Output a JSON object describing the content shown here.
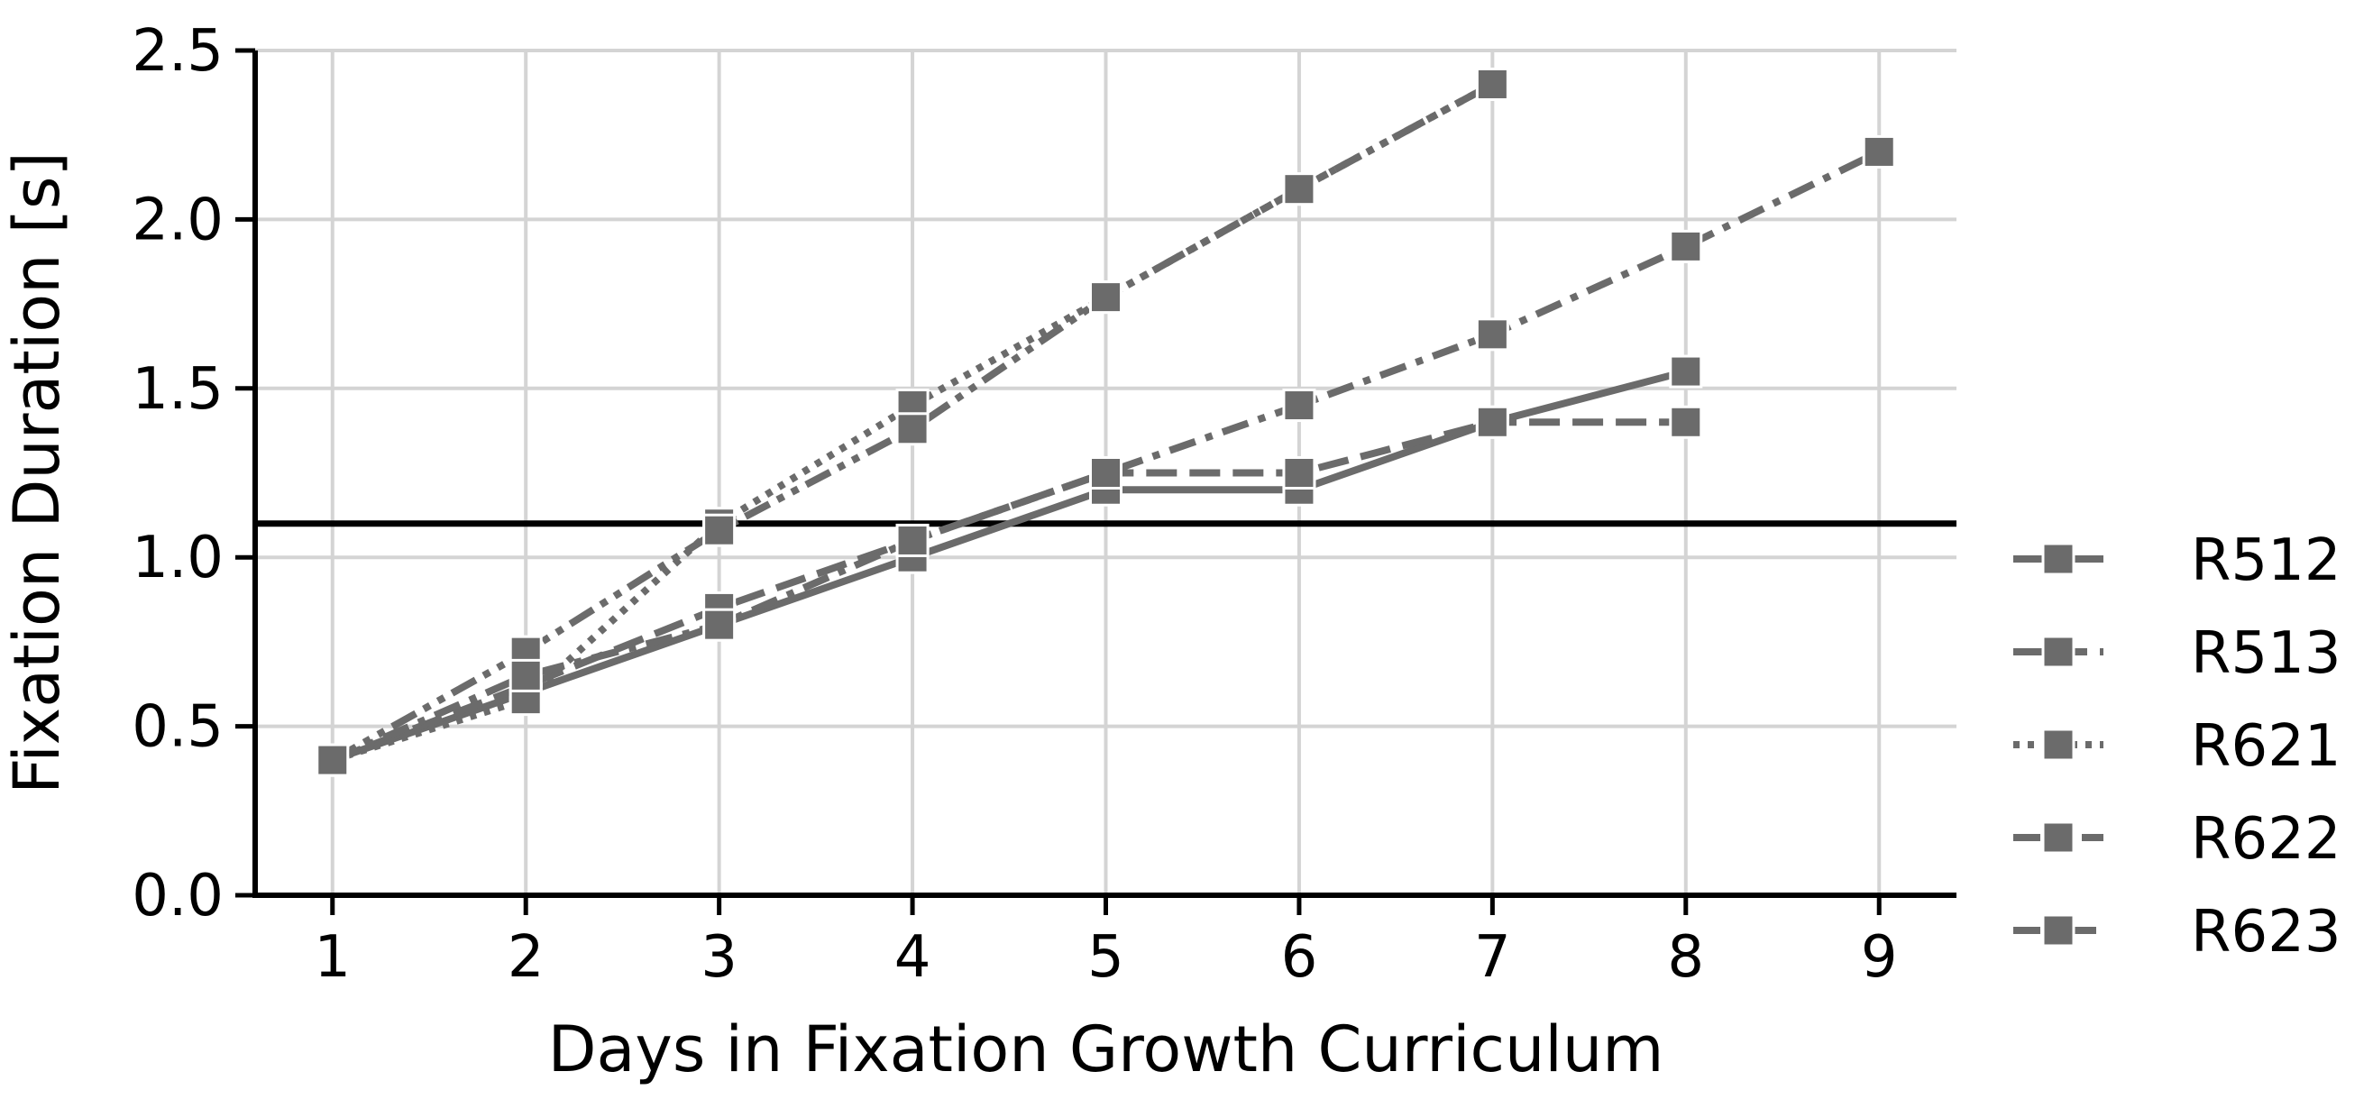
{
  "chart_data": {
    "type": "line",
    "title": "",
    "xlabel": "Days in Fixation Growth Curriculum",
    "ylabel": "Fixation Duration [s]",
    "xlim": [
      0.6,
      9.4
    ],
    "ylim": [
      0.0,
      2.5
    ],
    "x_ticks": [
      1,
      2,
      3,
      4,
      5,
      6,
      7,
      8,
      9
    ],
    "y_ticks": [
      "0.0",
      "0.5",
      "1.0",
      "1.5",
      "2.0",
      "2.5"
    ],
    "grid": true,
    "reference_line": {
      "y": 1.1,
      "color": "#000000"
    },
    "legend_position": "right",
    "series": [
      {
        "name": "R512",
        "dash": "solid",
        "color": "#6b6b6b",
        "marker": "square",
        "x": [
          1,
          2,
          3,
          4,
          5,
          6,
          7,
          8
        ],
        "values": [
          0.4,
          0.6,
          0.8,
          1.0,
          1.2,
          1.2,
          1.4,
          1.55
        ]
      },
      {
        "name": "R513",
        "dash": "dashed",
        "color": "#6b6b6b",
        "marker": "square",
        "x": [
          1,
          2,
          3,
          4,
          5,
          6,
          7,
          8
        ],
        "values": [
          0.4,
          0.62,
          0.85,
          1.05,
          1.25,
          1.25,
          1.4,
          1.4
        ]
      },
      {
        "name": "R621",
        "dash": "dotted",
        "color": "#6b6b6b",
        "marker": "square",
        "x": [
          1,
          2,
          3,
          4,
          5,
          6,
          7
        ],
        "values": [
          0.4,
          0.58,
          1.1,
          1.45,
          1.77,
          2.09,
          2.4
        ]
      },
      {
        "name": "R622",
        "dash": "dashdotdot",
        "color": "#6b6b6b",
        "marker": "square",
        "x": [
          1,
          2,
          3,
          4,
          5,
          6,
          7
        ],
        "values": [
          0.4,
          0.72,
          1.08,
          1.38,
          1.77,
          2.09,
          2.4
        ]
      },
      {
        "name": "R623",
        "dash": "dashdot",
        "color": "#6b6b6b",
        "marker": "square",
        "x": [
          1,
          2,
          3,
          4,
          5,
          6,
          7,
          8,
          9
        ],
        "values": [
          0.4,
          0.65,
          0.8,
          1.05,
          1.25,
          1.45,
          1.66,
          1.92,
          2.2
        ]
      }
    ]
  }
}
